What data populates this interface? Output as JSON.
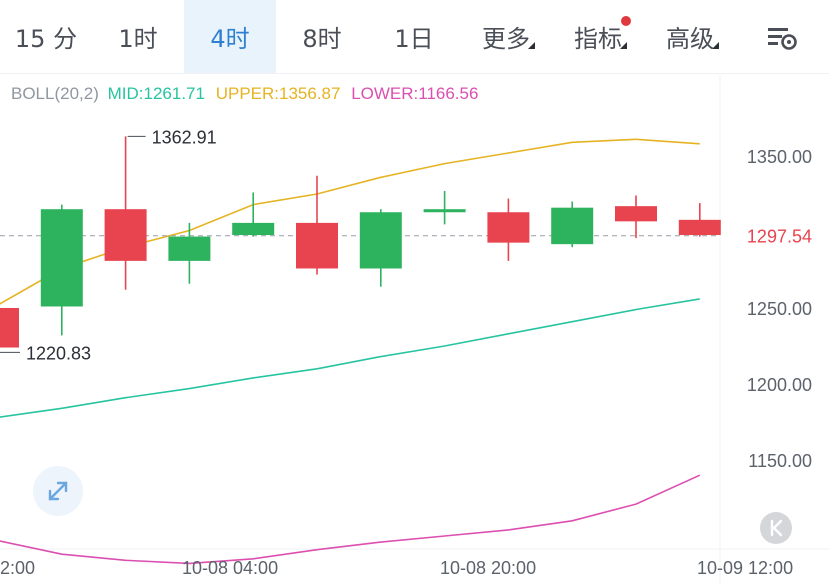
{
  "tabs": [
    {
      "label": "15 分",
      "active": false,
      "dropdown": false,
      "dot": false
    },
    {
      "label": "1时",
      "active": false,
      "dropdown": false,
      "dot": false
    },
    {
      "label": "4时",
      "active": true,
      "dropdown": false,
      "dot": false
    },
    {
      "label": "8时",
      "active": false,
      "dropdown": false,
      "dot": false
    },
    {
      "label": "1日",
      "active": false,
      "dropdown": false,
      "dot": false
    },
    {
      "label": "更多",
      "active": false,
      "dropdown": true,
      "dot": false
    },
    {
      "label": "指标",
      "active": false,
      "dropdown": true,
      "dot": true
    },
    {
      "label": "高级",
      "active": false,
      "dropdown": true,
      "dot": false
    }
  ],
  "indicator": {
    "name": "BOLL(20,2)",
    "mid": "MID:1261.71",
    "upper": "UPPER:1356.87",
    "lower": "LOWER:1166.56"
  },
  "colors": {
    "up": "#2db35d",
    "down": "#e8444f",
    "mid": "#27c4a0",
    "upper": "#e6b322",
    "lower": "#dc4fb1",
    "active_tab": "#2f80d1",
    "accent_bg": "#e9f3fc"
  },
  "icons": {
    "settings": "chart-settings-icon",
    "expand": "expand-arrows-icon",
    "back": "k-rewind-icon"
  },
  "chart_data": {
    "type": "candlestick",
    "y_ticks": [
      1350,
      1300,
      1250,
      1200,
      1150
    ],
    "y_tick_labels": [
      "1350.00",
      "1250.00",
      "1200.00",
      "1150.00"
    ],
    "ylim": [
      1105,
      1390
    ],
    "x_tick_labels": [
      "2:00",
      "10-08 04:00",
      "10-08 20:00",
      "10-09 12:00"
    ],
    "current_price": "1297.54",
    "annotations": {
      "high": "1362.91",
      "low": "1220.83"
    },
    "candles": [
      {
        "o": 1250,
        "h": 1250,
        "l": 1220.83,
        "c": 1224
      },
      {
        "o": 1251,
        "h": 1318,
        "l": 1232,
        "c": 1315
      },
      {
        "o": 1315,
        "h": 1362.91,
        "l": 1262,
        "c": 1281
      },
      {
        "o": 1281,
        "h": 1306,
        "l": 1266,
        "c": 1297
      },
      {
        "o": 1298,
        "h": 1326,
        "l": 1297,
        "c": 1306
      },
      {
        "o": 1306,
        "h": 1337,
        "l": 1272,
        "c": 1276
      },
      {
        "o": 1276,
        "h": 1315,
        "l": 1264,
        "c": 1313
      },
      {
        "o": 1313,
        "h": 1327,
        "l": 1305,
        "c": 1315
      },
      {
        "o": 1313,
        "h": 1322,
        "l": 1281,
        "c": 1293
      },
      {
        "o": 1292,
        "h": 1320,
        "l": 1290,
        "c": 1316
      },
      {
        "o": 1317,
        "h": 1324,
        "l": 1296,
        "c": 1307
      },
      {
        "o": 1308,
        "h": 1319,
        "l": 1297,
        "c": 1298
      }
    ],
    "upper": [
      1252,
      1276,
      1290,
      1301,
      1318,
      1325,
      1336,
      1345,
      1352,
      1359,
      1361,
      1358
    ],
    "mid": [
      1178,
      1184,
      1191,
      1197,
      1204,
      1210,
      1218,
      1225,
      1233,
      1241,
      1249,
      1256
    ],
    "lower": [
      1097,
      1088,
      1084,
      1082,
      1085,
      1091,
      1096,
      1100,
      1104,
      1110,
      1121,
      1140
    ]
  }
}
